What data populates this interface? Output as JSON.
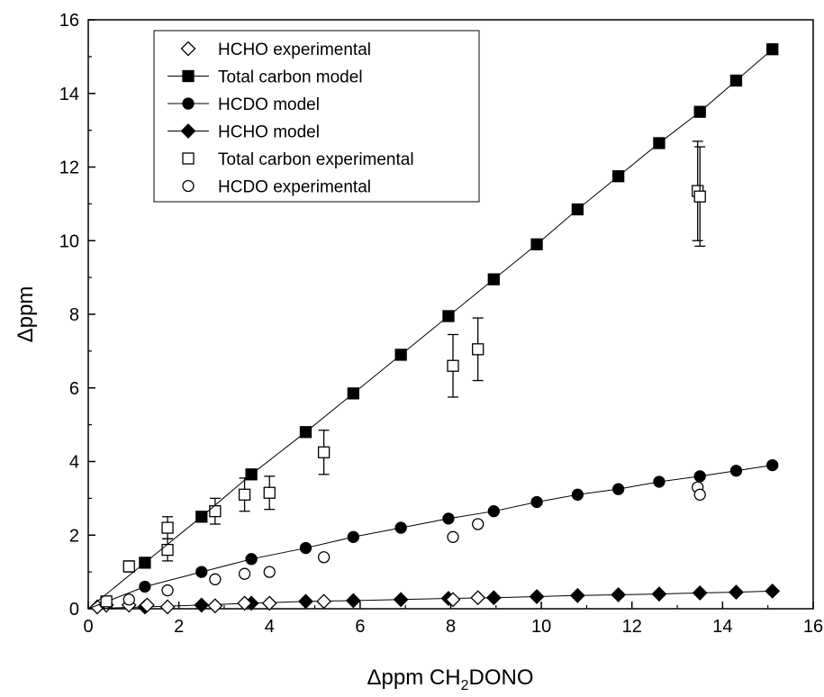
{
  "chart_data": {
    "type": "scatter",
    "title": "",
    "xlabel_main": "Δppm CH",
    "xlabel_sub": "2",
    "xlabel_tail": "DONO",
    "ylabel": "Δppm",
    "xlim": [
      0,
      16
    ],
    "ylim": [
      0,
      16
    ],
    "x_ticks": [
      "0",
      "2",
      "4",
      "6",
      "8",
      "10",
      "12",
      "14",
      "16"
    ],
    "y_ticks": [
      "0",
      "2",
      "4",
      "6",
      "8",
      "10",
      "12",
      "14",
      "16"
    ],
    "grid": false,
    "legend_position": "top-left",
    "series": [
      {
        "name": "HCHO experimental",
        "marker": "diamond-open",
        "line": false,
        "x": [
          0.2,
          0.4,
          0.9,
          1.3,
          1.75,
          2.8,
          3.45,
          4.0,
          5.2,
          8.05,
          8.6
        ],
        "y": [
          0.05,
          0.1,
          0.1,
          0.1,
          0.05,
          0.08,
          0.15,
          0.15,
          0.2,
          0.25,
          0.3
        ]
      },
      {
        "name": "Total carbon model",
        "marker": "square-filled",
        "line": true,
        "x": [
          1.25,
          2.5,
          3.6,
          4.8,
          5.85,
          6.9,
          7.95,
          8.95,
          9.9,
          10.8,
          11.7,
          12.6,
          13.5,
          14.3,
          15.1
        ],
        "y": [
          1.25,
          2.5,
          3.65,
          4.8,
          5.85,
          6.9,
          7.95,
          8.95,
          9.9,
          10.85,
          11.75,
          12.65,
          13.5,
          14.35,
          15.2
        ]
      },
      {
        "name": "HCDO model",
        "marker": "circle-filled",
        "line": true,
        "x": [
          1.25,
          2.5,
          3.6,
          4.8,
          5.85,
          6.9,
          7.95,
          8.95,
          9.9,
          10.8,
          11.7,
          12.6,
          13.5,
          14.3,
          15.1
        ],
        "y": [
          0.6,
          1.0,
          1.35,
          1.65,
          1.95,
          2.2,
          2.45,
          2.65,
          2.9,
          3.1,
          3.25,
          3.45,
          3.6,
          3.75,
          3.9
        ]
      },
      {
        "name": "HCHO model",
        "marker": "diamond-filled",
        "line": true,
        "x": [
          1.25,
          2.5,
          3.6,
          4.8,
          5.85,
          6.9,
          7.95,
          8.95,
          9.9,
          10.8,
          11.7,
          12.6,
          13.5,
          14.3,
          15.1
        ],
        "y": [
          0.05,
          0.1,
          0.15,
          0.2,
          0.22,
          0.25,
          0.28,
          0.3,
          0.33,
          0.36,
          0.38,
          0.4,
          0.43,
          0.45,
          0.48
        ]
      },
      {
        "name": "Total carbon experimental",
        "marker": "square-open",
        "line": false,
        "x": [
          0.4,
          0.9,
          1.75,
          1.75,
          2.8,
          3.45,
          4.0,
          5.2,
          8.05,
          8.6,
          13.45,
          13.5
        ],
        "y": [
          0.2,
          1.15,
          2.2,
          1.6,
          2.65,
          3.1,
          3.15,
          4.25,
          6.6,
          7.05,
          11.35,
          11.2
        ],
        "err": [
          0.05,
          0.15,
          0.3,
          0.3,
          0.35,
          0.45,
          0.45,
          0.6,
          0.85,
          0.85,
          1.35,
          1.35
        ]
      },
      {
        "name": "HCDO experimental",
        "marker": "circle-open",
        "line": false,
        "x": [
          0.4,
          0.9,
          1.75,
          2.8,
          3.45,
          4.0,
          5.2,
          8.05,
          8.6,
          13.45,
          13.5
        ],
        "y": [
          0.15,
          0.25,
          0.5,
          0.8,
          0.95,
          1.0,
          1.4,
          1.95,
          2.3,
          3.3,
          3.1
        ]
      }
    ]
  }
}
